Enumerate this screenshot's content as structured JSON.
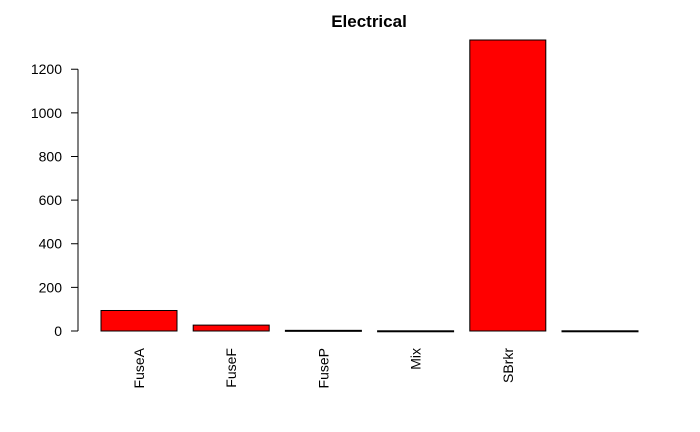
{
  "chart_data": {
    "type": "bar",
    "title": "Electrical",
    "xlabel": "",
    "ylabel": "",
    "categories": [
      "FuseA",
      "FuseF",
      "FuseP",
      "Mix",
      "SBrkr",
      ""
    ],
    "values": [
      94,
      27,
      3,
      1,
      1334,
      1
    ],
    "bar_color": "#ff0000",
    "bar_border_color": "#000000",
    "ylim": [
      0,
      1334
    ],
    "yticks": [
      0,
      200,
      400,
      600,
      800,
      1000,
      1200
    ],
    "grid": false,
    "legend": "none"
  }
}
